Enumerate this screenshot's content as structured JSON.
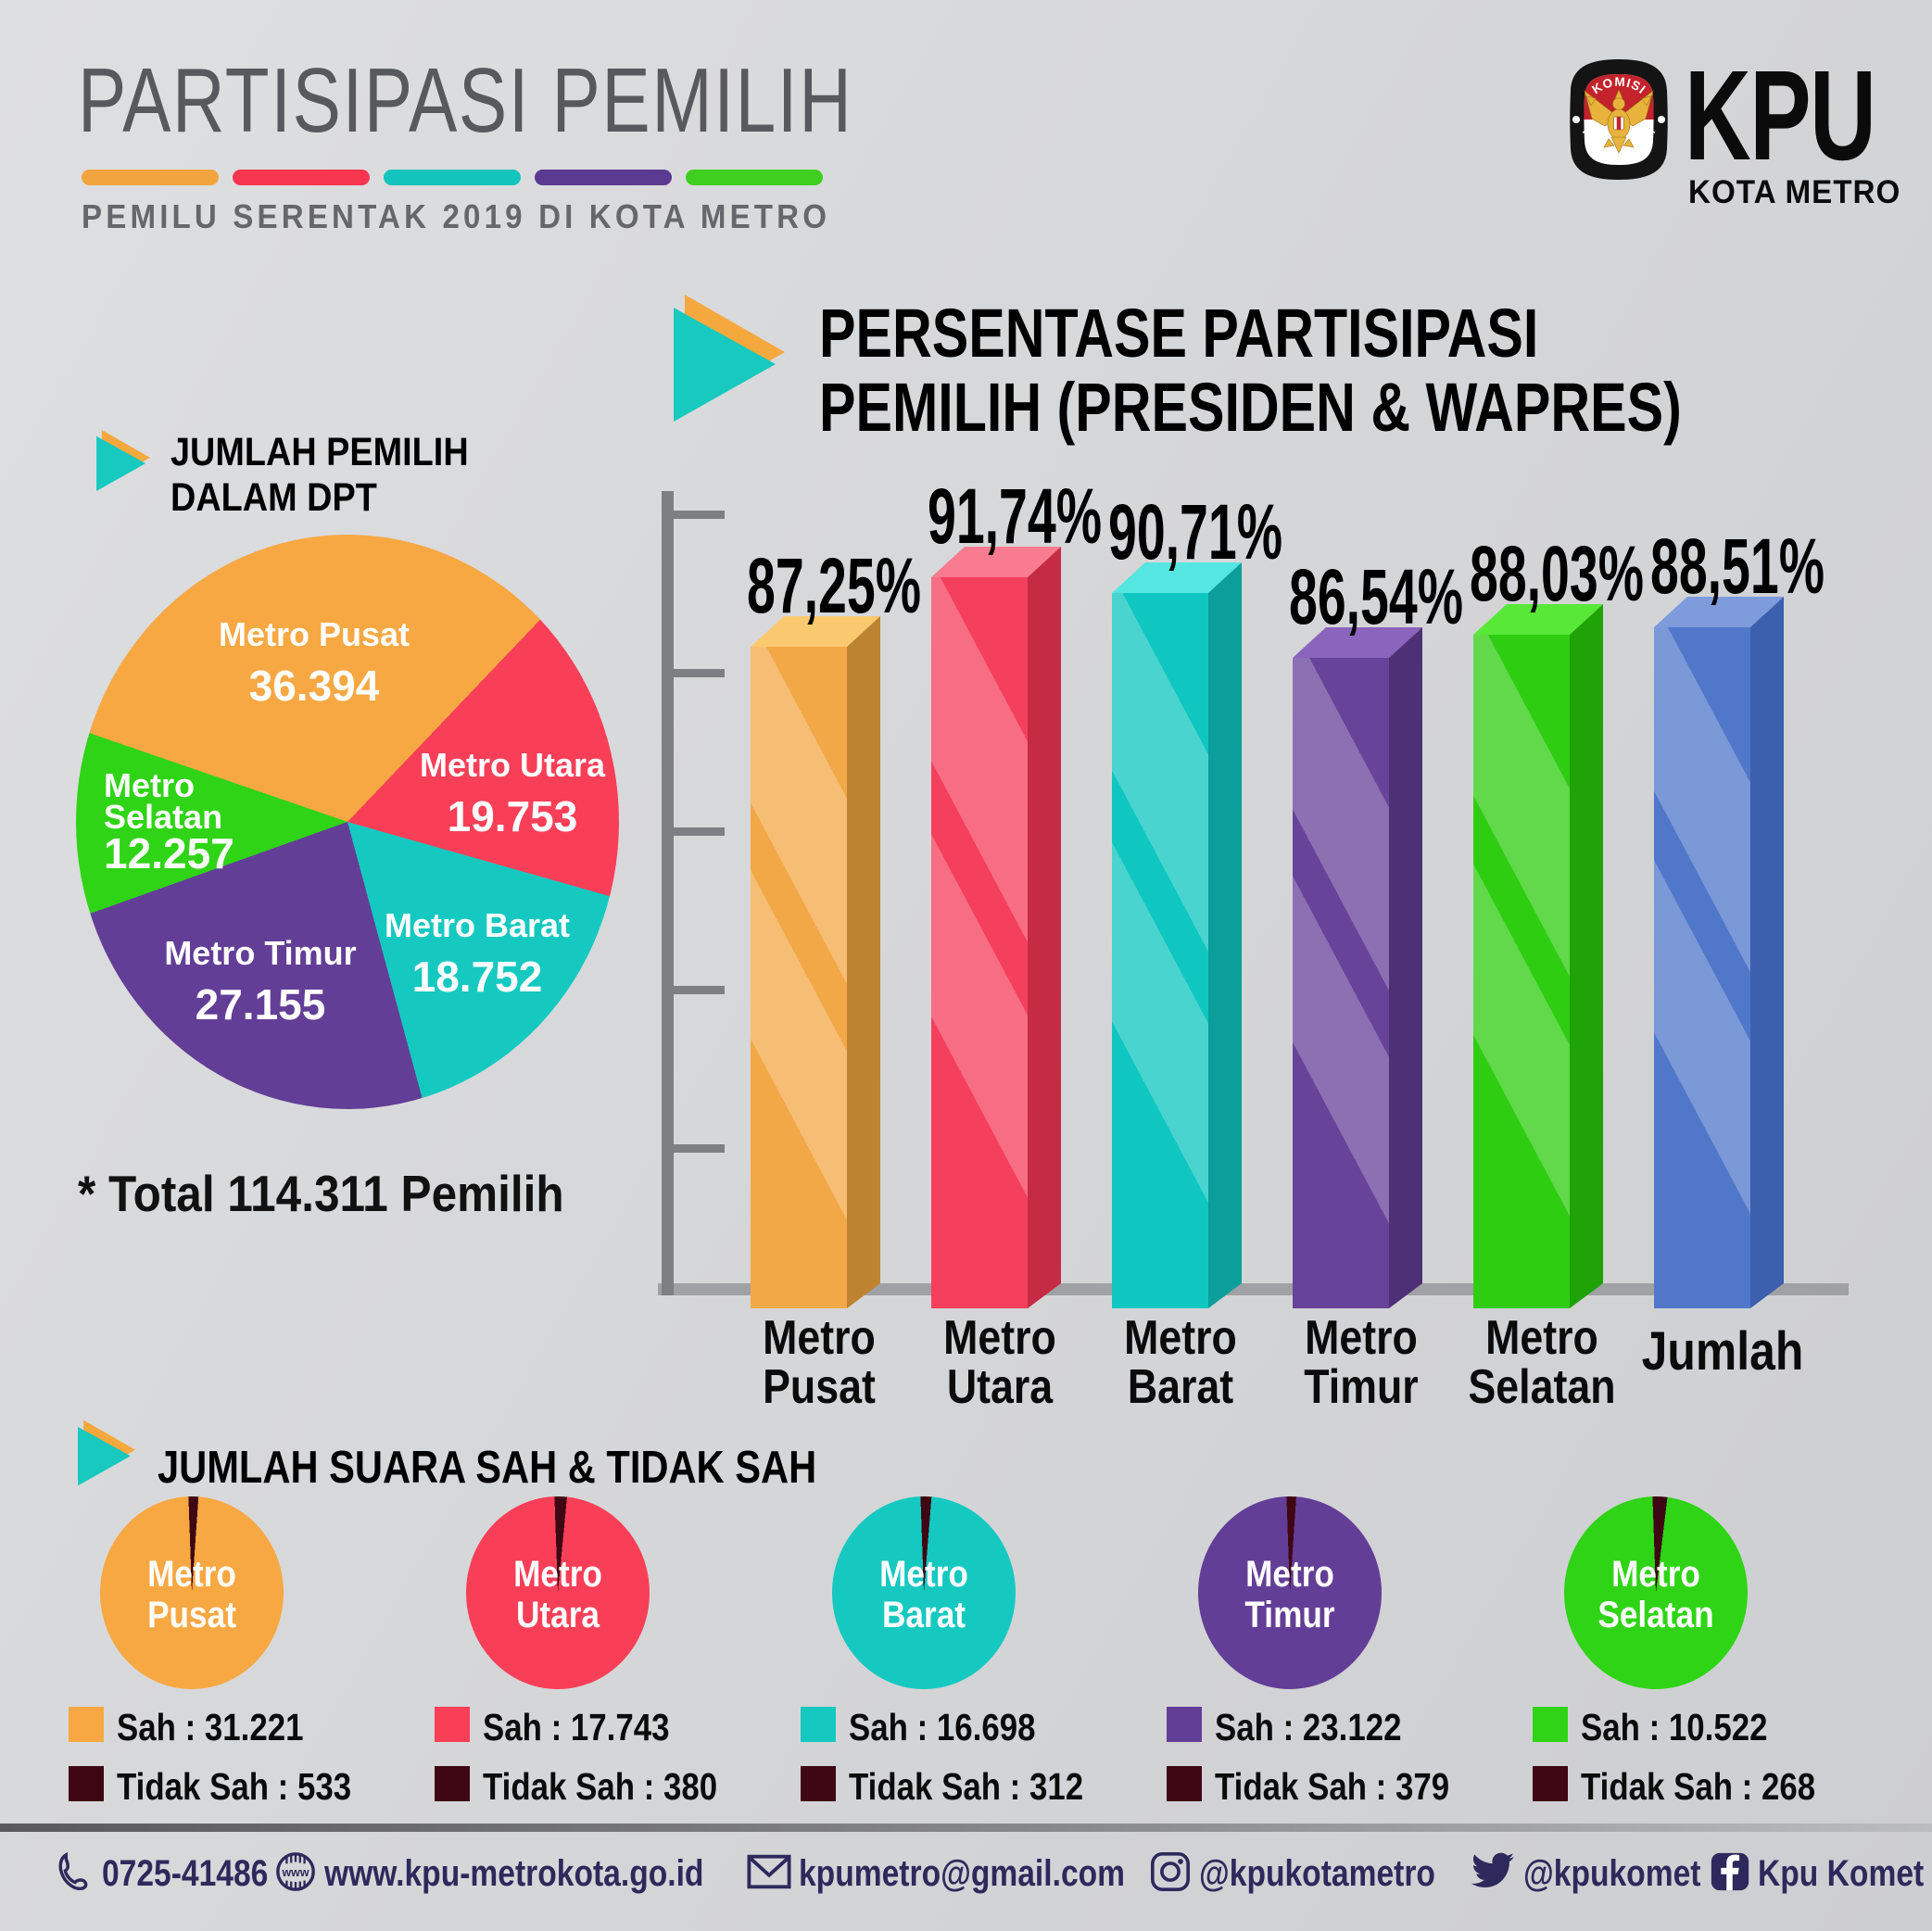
{
  "header": {
    "title": "PARTISIPASI PEMILIH",
    "subtitle": "PEMILU SERENTAK 2019 DI KOTA METRO",
    "stripe_colors": [
      "#f2a43e",
      "#f8354f",
      "#12c4bc",
      "#5b3b92",
      "#3ecf1f"
    ]
  },
  "logo": {
    "org_short": "KPU",
    "org_location": "KOTA METRO",
    "emblem_top_text": "KOMISI",
    "emblem_bottom_text": "PEMILIHAN UMUM"
  },
  "dpt_section": {
    "heading_line1": "JUMLAH PEMILIH",
    "heading_line2": "DALAM DPT",
    "total_note": "* Total 114.311 Pemilih"
  },
  "bar_section": {
    "title_line1": "PERSENTASE PARTISIPASI",
    "title_line2": "PEMILIH (PRESIDEN & WAPRES)"
  },
  "sah_section": {
    "heading": "JUMLAH SUARA SAH & TIDAK SAH"
  },
  "chart_data": [
    {
      "type": "pie",
      "title": "JUMLAH PEMILIH DALAM DPT",
      "labels": [
        "Metro Pusat",
        "Metro Utara",
        "Metro Barat",
        "Metro Timur",
        "Metro Selatan"
      ],
      "values": [
        36394,
        19753,
        18752,
        27155,
        12257
      ],
      "display_values": [
        "36.394",
        "19.753",
        "18.752",
        "27.155",
        "12.257"
      ],
      "colors": [
        "#F7A843",
        "#F93F58",
        "#15C9C1",
        "#633E97",
        "#2FD416"
      ],
      "total": 114311,
      "total_label": "* Total 114.311 Pemilih",
      "start_angle_deg": 289
    },
    {
      "type": "bar",
      "title": "PERSENTASE PARTISIPASI PEMILIH (PRESIDEN & WAPRES)",
      "categories": [
        [
          "Metro",
          "Pusat"
        ],
        [
          "Metro",
          "Utara"
        ],
        [
          "Metro",
          "Barat"
        ],
        [
          "Metro",
          "Timur"
        ],
        [
          "Metro",
          "Selatan"
        ],
        [
          "Jumlah"
        ]
      ],
      "values": [
        87.25,
        91.74,
        90.71,
        86.54,
        88.03,
        88.51
      ],
      "display_values": [
        "87,25%",
        "91,74%",
        "90,71%",
        "86,54%",
        "88,03%",
        "88,51%"
      ],
      "colors_front": [
        "#F3A848",
        "#F43F5D",
        "#10C6C0",
        "#68439A",
        "#2FCD12",
        "#5177CA"
      ],
      "colors_top": [
        "#FAC96F",
        "#F97B8F",
        "#55E6E1",
        "#8A64BD",
        "#58E838",
        "#7E9BDC"
      ],
      "colors_side": [
        "#BE8330",
        "#C62B44",
        "#0B9E9A",
        "#4E3076",
        "#1FA306",
        "#3C5FAE"
      ],
      "ylabel": "",
      "axis": "truncated, unlabeled ticks"
    },
    {
      "type": "pie-multiple",
      "title": "JUMLAH SUARA SAH & TIDAK SAH",
      "invalid_color": "#3F0713",
      "items": [
        {
          "label_line1": "Metro",
          "label_line2": "Pusat",
          "sah": 31221,
          "tidak_sah": 533,
          "sah_display": "Sah : 31.221",
          "tidak_display": "Tidak Sah : 533",
          "color": "#F7A843"
        },
        {
          "label_line1": "Metro",
          "label_line2": "Utara",
          "sah": 17743,
          "tidak_sah": 380,
          "sah_display": "Sah : 17.743",
          "tidak_display": "Tidak Sah : 380",
          "color": "#F93F58"
        },
        {
          "label_line1": "Metro",
          "label_line2": "Barat",
          "sah": 16698,
          "tidak_sah": 312,
          "sah_display": "Sah : 16.698",
          "tidak_display": "Tidak Sah : 312",
          "color": "#15C9C1"
        },
        {
          "label_line1": "Metro",
          "label_line2": "Timur",
          "sah": 23122,
          "tidak_sah": 379,
          "sah_display": "Sah : 23.122",
          "tidak_display": "Tidak Sah : 379",
          "color": "#633E97"
        },
        {
          "label_line1": "Metro",
          "label_line2": "Selatan",
          "sah": 10522,
          "tidak_sah": 268,
          "sah_display": "Sah : 10.522",
          "tidak_display": "Tidak Sah : 268",
          "color": "#2FD416"
        }
      ]
    }
  ],
  "footer": {
    "items": [
      {
        "icon": "phone",
        "text": "0725-41486"
      },
      {
        "icon": "globe-www",
        "text": "www.kpu-metrokota.go.id"
      },
      {
        "icon": "email",
        "text": "kpumetro@gmail.com"
      },
      {
        "icon": "instagram",
        "text": "@kpukotametro"
      },
      {
        "icon": "twitter",
        "text": "@kpukomet"
      },
      {
        "icon": "facebook",
        "text": "Kpu Komet"
      }
    ]
  }
}
